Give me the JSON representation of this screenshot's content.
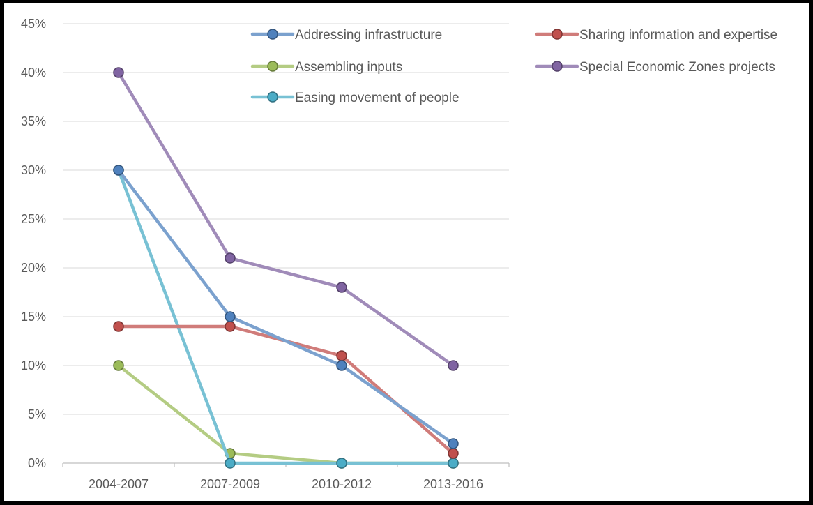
{
  "chart_data": {
    "type": "line",
    "title": "",
    "xlabel": "",
    "ylabel": "",
    "categories": [
      "2004-2007",
      "2007-2009",
      "2010-2012",
      "2013-2016"
    ],
    "ylim": [
      0,
      45
    ],
    "y_ticks": [
      "0%",
      "5%",
      "10%",
      "15%",
      "20%",
      "25%",
      "30%",
      "35%",
      "40%",
      "45%"
    ],
    "y_tick_values": [
      0,
      5,
      10,
      15,
      20,
      25,
      30,
      35,
      40,
      45
    ],
    "grid": true,
    "legend_position": "top-right",
    "series": [
      {
        "name": "Addressing infrastructure",
        "values": [
          30,
          15,
          10,
          2
        ],
        "color": "#4F81BD"
      },
      {
        "name": "Sharing information and expertise",
        "values": [
          14,
          14,
          11,
          1
        ],
        "color": "#C0504D"
      },
      {
        "name": "Assembling inputs",
        "values": [
          10,
          1,
          0,
          0
        ],
        "color": "#9BBB59"
      },
      {
        "name": "Special Economic Zones projects",
        "values": [
          40,
          21,
          18,
          10
        ],
        "color": "#8064A2"
      },
      {
        "name": "Easing movement of people",
        "values": [
          30,
          0,
          0,
          0
        ],
        "color": "#4BACC6"
      }
    ],
    "draw_order": [
      3,
      2,
      4,
      1,
      0
    ]
  }
}
